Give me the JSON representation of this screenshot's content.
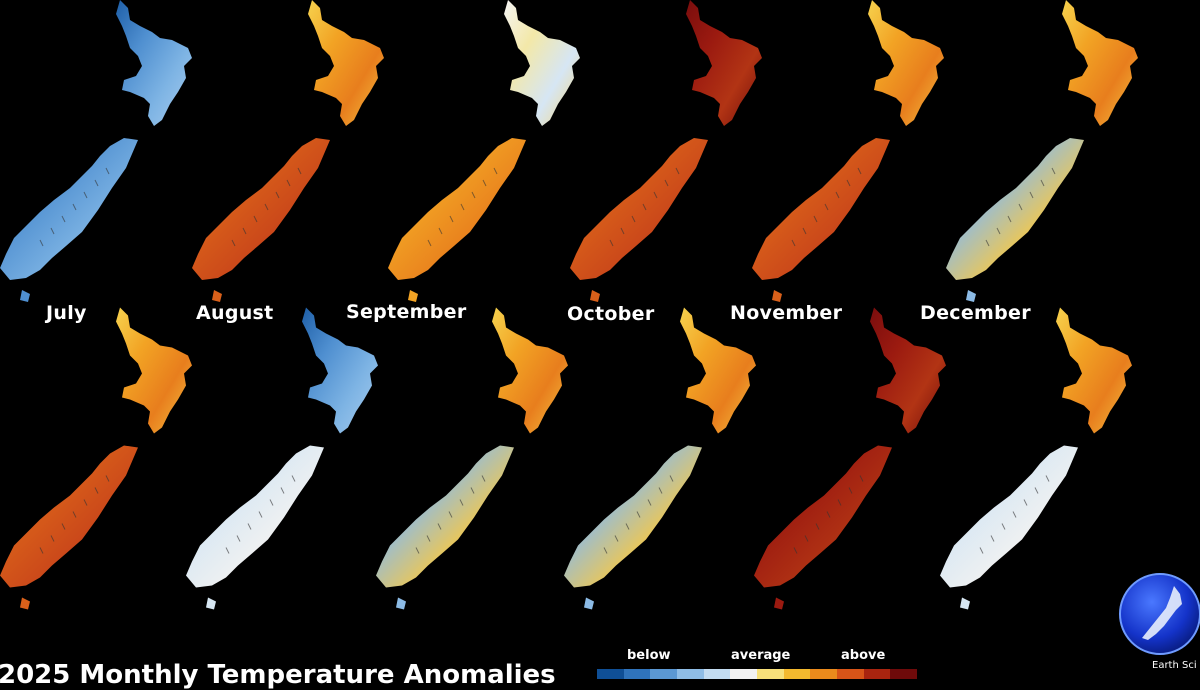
{
  "months_row1": [
    {
      "name": "July",
      "north": "cool",
      "south": "cool"
    },
    {
      "name": "August",
      "north": "warm",
      "south": "warmer"
    },
    {
      "name": "September",
      "north": "neutral",
      "south": "warm"
    },
    {
      "name": "October",
      "north": "hot",
      "south": "warmer"
    },
    {
      "name": "November",
      "north": "warm",
      "south": "warmer"
    },
    {
      "name": "December",
      "north": "warm",
      "south": "mixed"
    }
  ],
  "months_row2": [
    {
      "name": "",
      "north": "warm",
      "south": "warmer"
    },
    {
      "name": "",
      "north": "cool",
      "south": "neutral-cool"
    },
    {
      "name": "",
      "north": "warm",
      "south": "mixed"
    },
    {
      "name": "",
      "north": "warm",
      "south": "mixed"
    },
    {
      "name": "",
      "north": "hot",
      "south": "hot"
    },
    {
      "name": "",
      "north": "warm",
      "south": "neutral-cool"
    }
  ],
  "palette": {
    "cool": [
      "#1e5fa8",
      "#4f8fd0",
      "#7eb4e4",
      "#a9cdef"
    ],
    "neutral-cool": [
      "#9cc5ea",
      "#d7e7f3",
      "#f2f2f2",
      "#c6dbef"
    ],
    "neutral": [
      "#f5f5f5",
      "#f3e8a8",
      "#d6e6f4",
      "#f6d77a"
    ],
    "warm": [
      "#f6d24e",
      "#f2a324",
      "#e87e1d",
      "#f5c542"
    ],
    "warmer": [
      "#e8891e",
      "#d9601a",
      "#c8441a",
      "#f0a32a"
    ],
    "hot": [
      "#7a0d0d",
      "#9b1a10",
      "#b23414",
      "#6e0a0a"
    ],
    "mixed": [
      "#e8eef6",
      "#8cbbe6",
      "#f4c84a",
      "#f0f0f0"
    ]
  },
  "legend": {
    "below": "below",
    "average": "average",
    "above": "above",
    "colors": [
      "#0f4f96",
      "#2f73bb",
      "#5b98d3",
      "#8fbde6",
      "#c3dcf1",
      "#f2f2f2",
      "#f7e07a",
      "#f3b92e",
      "#ea8a1c",
      "#d75418",
      "#a8240f",
      "#6e0a0a"
    ]
  },
  "title": "2025 Monthly Temperature Anomalies",
  "logo_text": "Earth Sci"
}
